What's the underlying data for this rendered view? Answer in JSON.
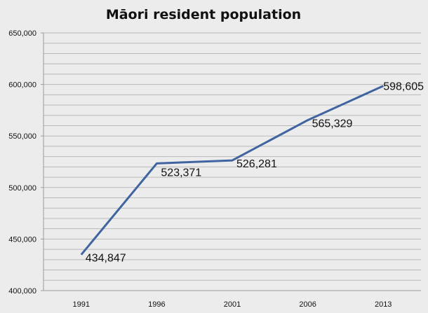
{
  "chart_data": {
    "type": "line",
    "title": "Māori resident population",
    "categories": [
      "1991",
      "1996",
      "2001",
      "2006",
      "2013"
    ],
    "series": [
      {
        "name": "Māori resident population",
        "values": [
          434847,
          523371,
          526281,
          565329,
          598605
        ]
      }
    ],
    "data_labels": [
      "434,847",
      "523,371",
      "526,281",
      "565,329",
      "598,605"
    ],
    "y_ticks": [
      "400,000",
      "450,000",
      "500,000",
      "550,000",
      "600,000",
      "650,000"
    ],
    "ylim": [
      400000,
      650000
    ],
    "minor_grid_step": 10000,
    "xlabel": "",
    "ylabel": "",
    "grid": true,
    "colors": {
      "series": "#3f64a0",
      "grid": "#b9b9b9",
      "background": "#ececec"
    }
  }
}
